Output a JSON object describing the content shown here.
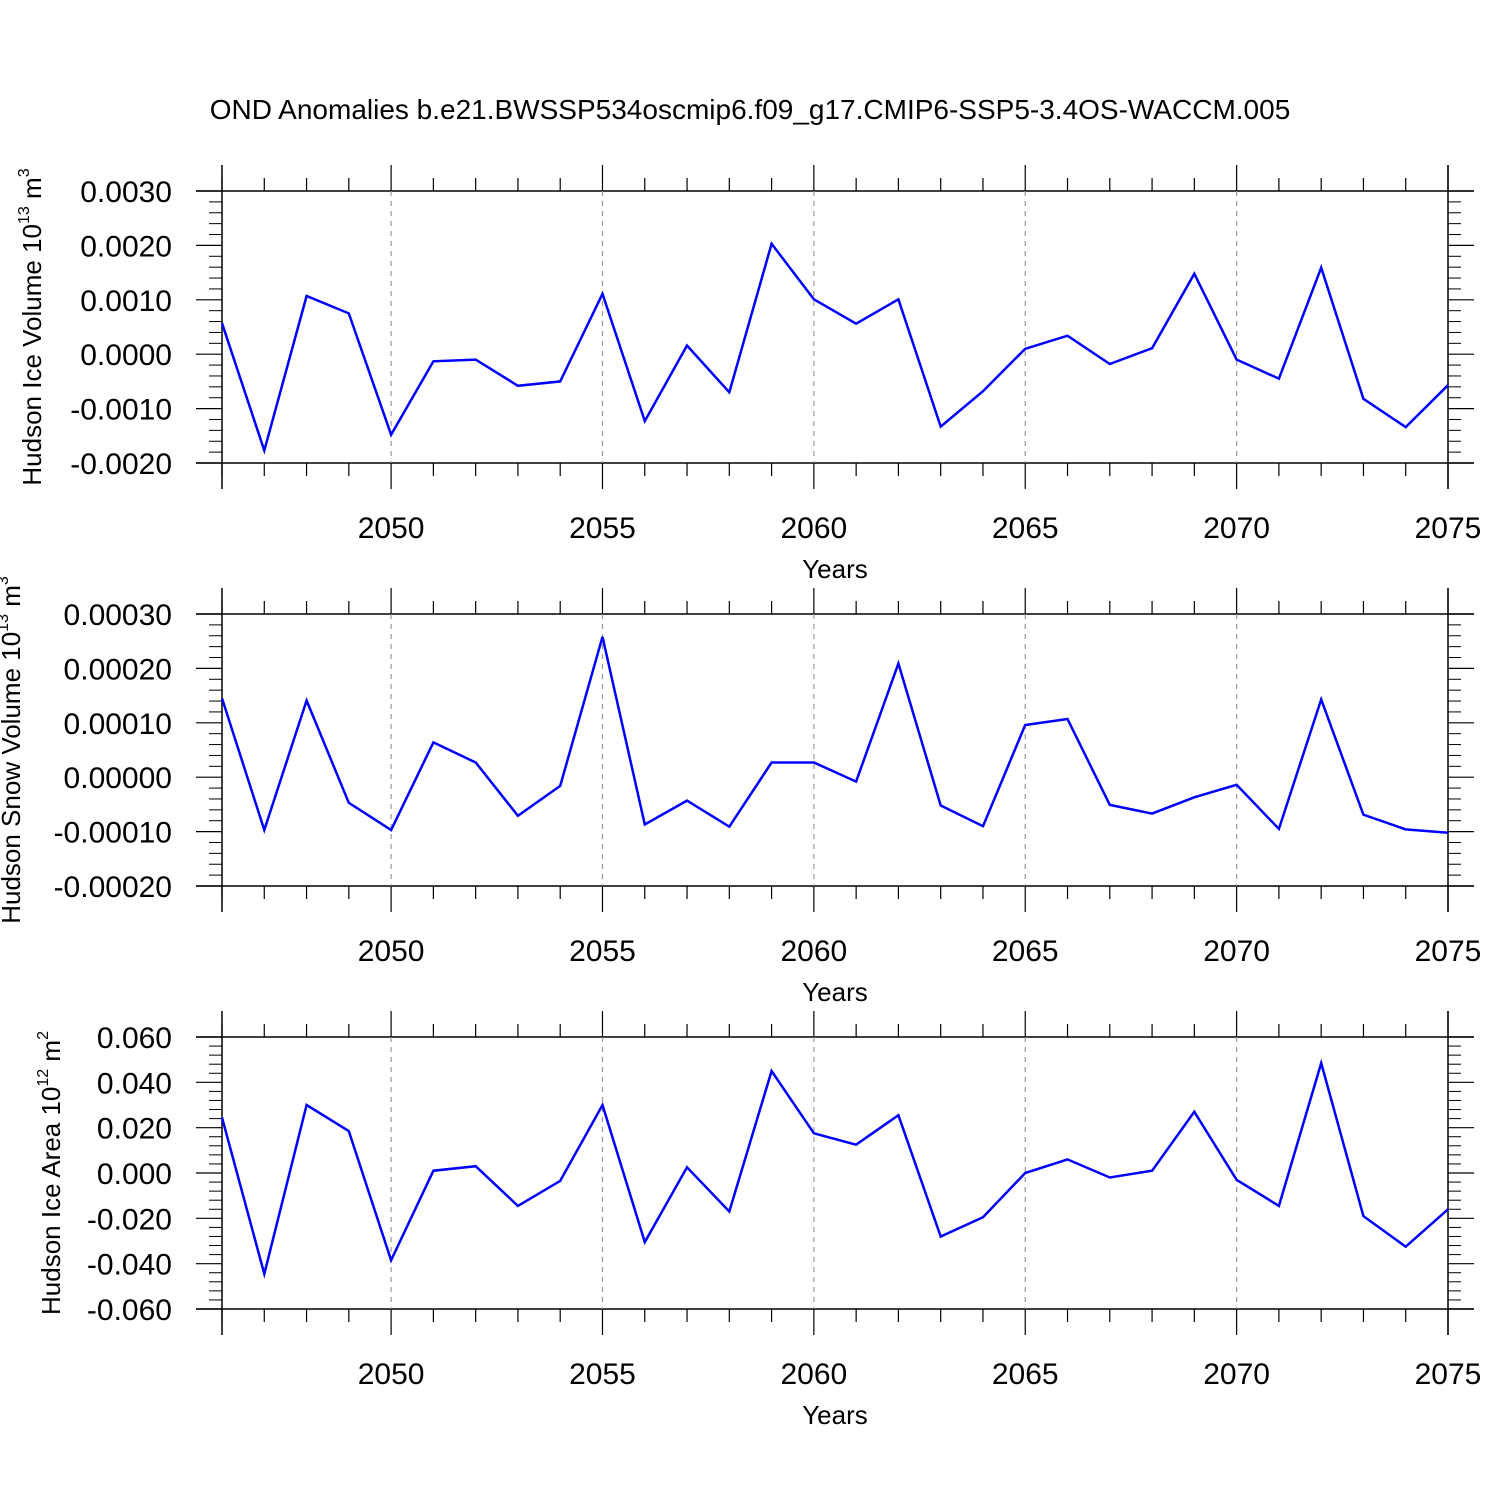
{
  "title": "OND Anomalies b.e21.BWSSP534oscmip6.f09_g17.CMIP6-SSP5-3.4OS-WACCM.005",
  "chart_data": [
    {
      "type": "line",
      "title": "OND Anomalies b.e21.BWSSP534oscmip6.f09_g17.CMIP6-SSP5-3.4OS-WACCM.005",
      "xlabel": "Years",
      "ylabel_main": "Hudson Ice Volume 10",
      "ylabel_exp": "13",
      "ylabel_unit": " m",
      "ylabel_unit_exp": "3",
      "xlim": [
        2046,
        2075
      ],
      "ylim": [
        -0.002,
        0.003
      ],
      "yticks": [
        -0.002,
        -0.001,
        0.0,
        0.001,
        0.002,
        0.003
      ],
      "ytick_labels": [
        "-0.0020",
        "-0.0010",
        "0.0000",
        "0.0010",
        "0.0020",
        "0.0030"
      ],
      "xticks": [
        2050,
        2055,
        2060,
        2065,
        2070,
        2075
      ],
      "xtick_labels": [
        "2050",
        "2055",
        "2060",
        "2065",
        "2070",
        "2075"
      ],
      "series": [
        {
          "name": "Hudson Ice Volume",
          "color": "#0000ff",
          "x": [
            2046,
            2047,
            2048,
            2049,
            2050,
            2051,
            2052,
            2053,
            2054,
            2055,
            2056,
            2057,
            2058,
            2059,
            2060,
            2061,
            2062,
            2063,
            2064,
            2065,
            2066,
            2067,
            2068,
            2069,
            2070,
            2071,
            2072,
            2073,
            2074,
            2075
          ],
          "values": [
            0.00057,
            -0.00177,
            0.00107,
            0.00075,
            -0.00148,
            -0.00013,
            -0.0001,
            -0.00058,
            -0.0005,
            0.00111,
            -0.00123,
            0.00016,
            -0.0007,
            0.00203,
            0.00101,
            0.00056,
            0.00101,
            -0.00133,
            -0.00068,
            0.0001,
            0.00034,
            -0.00018,
            0.00011,
            0.00148,
            -0.0001,
            -0.00045,
            0.00159,
            -0.00082,
            -0.00134,
            -0.00057
          ]
        }
      ]
    },
    {
      "type": "line",
      "xlabel": "Years",
      "ylabel_main": "Hudson Snow Volume 10",
      "ylabel_exp": "13",
      "ylabel_unit": " m",
      "ylabel_unit_exp": "3",
      "xlim": [
        2046,
        2075
      ],
      "ylim": [
        -0.0002,
        0.0003
      ],
      "yticks": [
        -0.0002,
        -0.0001,
        0.0,
        0.0001,
        0.0002,
        0.0003
      ],
      "ytick_labels": [
        "-0.00020",
        "-0.00010",
        "0.00000",
        "0.00010",
        "0.00020",
        "0.00030"
      ],
      "xticks": [
        2050,
        2055,
        2060,
        2065,
        2070,
        2075
      ],
      "xtick_labels": [
        "2050",
        "2055",
        "2060",
        "2065",
        "2070",
        "2075"
      ],
      "series": [
        {
          "name": "Hudson Snow Volume",
          "color": "#0000ff",
          "x": [
            2046,
            2047,
            2048,
            2049,
            2050,
            2051,
            2052,
            2053,
            2054,
            2055,
            2056,
            2057,
            2058,
            2059,
            2060,
            2061,
            2062,
            2063,
            2064,
            2065,
            2066,
            2067,
            2068,
            2069,
            2070,
            2071,
            2072,
            2073,
            2074,
            2075
          ],
          "values": [
            0.000145,
            -9.7e-05,
            0.000141,
            -4.7e-05,
            -9.7e-05,
            6.4e-05,
            2.7e-05,
            -7.1e-05,
            -1.6e-05,
            0.000258,
            -8.7e-05,
            -4.3e-05,
            -9.1e-05,
            2.7e-05,
            2.7e-05,
            -8e-06,
            0.000209,
            -5.2e-05,
            -9e-05,
            9.6e-05,
            0.000107,
            -5.1e-05,
            -6.7e-05,
            -3.7e-05,
            -1.4e-05,
            -9.5e-05,
            0.000143,
            -6.9e-05,
            -9.6e-05,
            -0.000102
          ]
        }
      ]
    },
    {
      "type": "line",
      "xlabel": "Years",
      "ylabel_main": "Hudson Ice Area 10",
      "ylabel_exp": "12",
      "ylabel_unit": " m",
      "ylabel_unit_exp": "2",
      "xlim": [
        2046,
        2075
      ],
      "ylim": [
        -0.06,
        0.06
      ],
      "yticks": [
        -0.06,
        -0.04,
        -0.02,
        0.0,
        0.02,
        0.04,
        0.06
      ],
      "ytick_labels": [
        "-0.060",
        "-0.040",
        "-0.020",
        "0.000",
        "0.020",
        "0.040",
        "0.060"
      ],
      "xticks": [
        2050,
        2055,
        2060,
        2065,
        2070,
        2075
      ],
      "xtick_labels": [
        "2050",
        "2055",
        "2060",
        "2065",
        "2070",
        "2075"
      ],
      "series": [
        {
          "name": "Hudson Ice Area",
          "color": "#0000ff",
          "x": [
            2046,
            2047,
            2048,
            2049,
            2050,
            2051,
            2052,
            2053,
            2054,
            2055,
            2056,
            2057,
            2058,
            2059,
            2060,
            2061,
            2062,
            2063,
            2064,
            2065,
            2066,
            2067,
            2068,
            2069,
            2070,
            2071,
            2072,
            2073,
            2074,
            2075
          ],
          "values": [
            0.0245,
            -0.0445,
            0.03,
            0.0185,
            -0.0385,
            0.001,
            0.003,
            -0.0145,
            -0.0035,
            0.03,
            -0.0305,
            0.0025,
            -0.017,
            0.045,
            0.0175,
            0.0125,
            0.0255,
            -0.028,
            -0.0195,
            0.0,
            0.006,
            -0.002,
            0.001,
            0.027,
            -0.003,
            -0.0145,
            0.0485,
            -0.019,
            -0.0325,
            -0.016
          ]
        }
      ]
    }
  ]
}
